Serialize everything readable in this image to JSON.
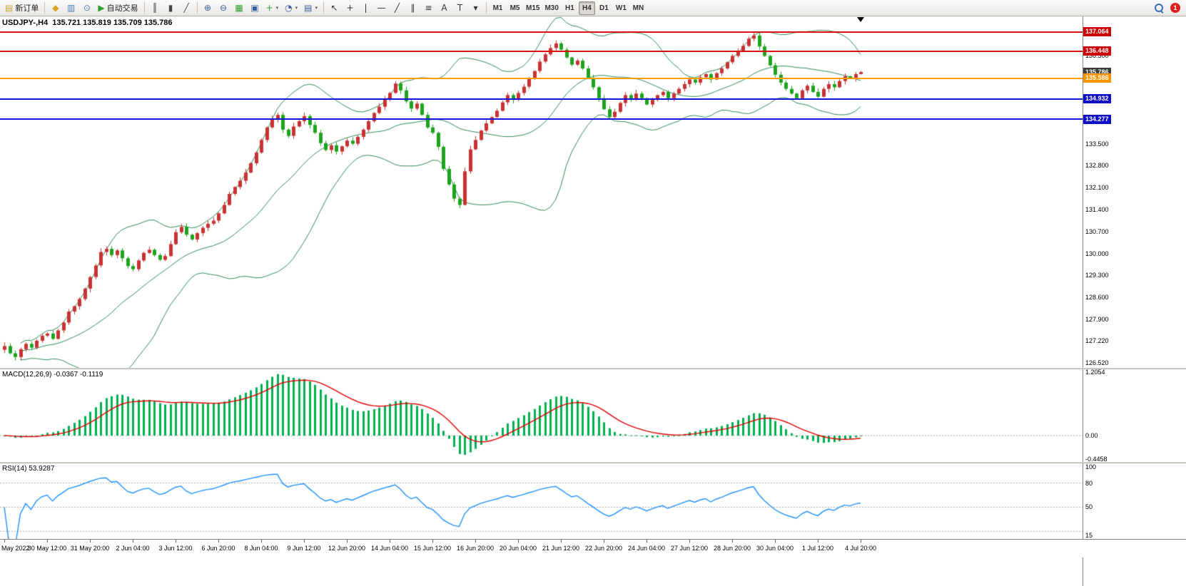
{
  "toolbar": {
    "notification_count": "1",
    "timeframes": [
      "M1",
      "M5",
      "M15",
      "M30",
      "H1",
      "H4",
      "D1",
      "W1",
      "MN"
    ],
    "active_timeframe": "H4",
    "items": [
      {
        "t": "btn",
        "name": "new-order-button",
        "icon": "new-order-icon",
        "glyph": "▤",
        "color": "#caa53a",
        "label": "新订单"
      },
      {
        "t": "sep"
      },
      {
        "t": "icon",
        "name": "market-watch-button",
        "icon": "market-watch-icon",
        "glyph": "◆",
        "color": "#d9a520"
      },
      {
        "t": "icon",
        "name": "chart-window-button",
        "icon": "chart-window-icon",
        "glyph": "▥",
        "color": "#4a7ebb"
      },
      {
        "t": "icon",
        "name": "strategy-tester-button",
        "icon": "strategy-tester-icon",
        "glyph": "⊙",
        "color": "#4a7ebb"
      },
      {
        "t": "btn",
        "name": "auto-trading-button",
        "icon": "autotrading-play-icon",
        "glyph": "▶",
        "color": "#2ca02c",
        "label": "自动交易"
      },
      {
        "t": "sep"
      },
      {
        "t": "icon",
        "name": "bar-chart-button",
        "icon": "ohlc-bars-icon",
        "glyph": "║",
        "color": "#444444"
      },
      {
        "t": "icon",
        "name": "candlestick-chart-button",
        "icon": "candlestick-icon",
        "glyph": "▮",
        "color": "#444444"
      },
      {
        "t": "icon",
        "name": "line-chart-button",
        "icon": "line-chart-icon",
        "glyph": "╱",
        "color": "#444444"
      },
      {
        "t": "sep"
      },
      {
        "t": "icon",
        "name": "zoom-in-button",
        "icon": "zoom-in-icon",
        "glyph": "⊕",
        "color": "#3a5fa0"
      },
      {
        "t": "icon",
        "name": "zoom-out-button",
        "icon": "zoom-out-icon",
        "glyph": "⊖",
        "color": "#3a5fa0"
      },
      {
        "t": "icon",
        "name": "tile-windows-button",
        "icon": "tile-windows-icon",
        "glyph": "▦",
        "color": "#2e9e2e"
      },
      {
        "t": "icon",
        "name": "arrange-windows-button",
        "icon": "arrange-windows-icon",
        "glyph": "▣",
        "color": "#3a5fa0"
      },
      {
        "t": "icon",
        "name": "new-chart-button",
        "icon": "new-chart-icon",
        "glyph": "+",
        "color": "#2e9e2e",
        "dropdown": true
      },
      {
        "t": "icon",
        "name": "period-button",
        "icon": "clock-icon",
        "glyph": "◔",
        "color": "#3a5fa0",
        "dropdown": true
      },
      {
        "t": "icon",
        "name": "template-button",
        "icon": "template-icon",
        "glyph": "▤",
        "color": "#3a5fa0",
        "dropdown": true
      },
      {
        "t": "sep"
      },
      {
        "t": "icon",
        "name": "cursor-button",
        "icon": "cursor-icon",
        "glyph": "↖",
        "color": "#333333"
      },
      {
        "t": "icon",
        "name": "crosshair-button",
        "icon": "crosshair-icon",
        "glyph": "+",
        "color": "#333333"
      },
      {
        "t": "icon",
        "name": "vertical-line-button",
        "icon": "vertical-line-icon",
        "glyph": "|",
        "color": "#333333"
      },
      {
        "t": "icon",
        "name": "horizontal-line-button",
        "icon": "horizontal-line-icon",
        "glyph": "—",
        "color": "#333333"
      },
      {
        "t": "icon",
        "name": "trendline-button",
        "icon": "trendline-icon",
        "glyph": "╱",
        "color": "#333333"
      },
      {
        "t": "icon",
        "name": "channel-button",
        "icon": "channel-icon",
        "glyph": "∥",
        "color": "#333333"
      },
      {
        "t": "icon",
        "name": "fibonacci-button",
        "icon": "fibonacci-icon",
        "glyph": "≡",
        "color": "#333333"
      },
      {
        "t": "icon",
        "name": "text-button",
        "icon": "text-icon",
        "glyph": "A",
        "color": "#333333"
      },
      {
        "t": "icon",
        "name": "arrows-button",
        "icon": "arrows-icon",
        "glyph": "T",
        "color": "#333333"
      },
      {
        "t": "icon",
        "name": "shapes-button",
        "icon": "shapes-dropdown-icon",
        "glyph": "▾",
        "color": "#333333"
      },
      {
        "t": "sep"
      }
    ]
  },
  "chart": {
    "title": "USDJPY-,H4  135.721 135.819 135.709 135.786",
    "symbol": "USDJPY-",
    "period": "H4",
    "ohlc": {
      "open": "135.721",
      "high": "135.819",
      "low": "135.709",
      "close": "135.786"
    },
    "price_scale": [
      "136.300",
      "133.500",
      "132.800",
      "132.100",
      "131.400",
      "130.700",
      "130.000",
      "129.300",
      "128.600",
      "127.900",
      "127.220",
      "126.520"
    ],
    "hlines": [
      {
        "value": 137.064,
        "label": "137.064",
        "color": "#dd1111",
        "tag_bg": "#cc0000"
      },
      {
        "value": 136.448,
        "label": "136.448",
        "color": "#dd1111",
        "tag_bg": "#cc0000"
      },
      {
        "value": 135.786,
        "label": "135.786",
        "color": "#3c3c3c",
        "tag_only": true
      },
      {
        "value": 135.586,
        "label": "135.586",
        "color": "#ff9c00",
        "tag_bg": "#f79400"
      },
      {
        "value": 134.932,
        "label": "134.932",
        "color": "#1414dd",
        "tag_bg": "#0f0fc8"
      },
      {
        "value": 134.277,
        "label": "134.277",
        "color": "#1414dd",
        "tag_bg": "#0f0fc8"
      }
    ]
  },
  "macd": {
    "label": "MACD(12,26,9) -0.0367 -0.1119",
    "max": 1.2054,
    "min": -0.4458,
    "scale": [
      {
        "label": "1.2054",
        "v": 1.2054
      },
      {
        "label": "0.00",
        "v": 0
      },
      {
        "label": "-0.4458",
        "v": -0.4458
      }
    ]
  },
  "rsi": {
    "label": "RSI(14) 53.9287",
    "levels": [
      80,
      50,
      20
    ],
    "scale": [
      {
        "label": "100",
        "v": 100
      },
      {
        "label": "80",
        "v": 80
      },
      {
        "label": "50",
        "v": 50
      },
      {
        "label": "15",
        "v": 15
      }
    ]
  },
  "time_axis": [
    "May 2022",
    "30 May 12:00",
    "31 May 20:00",
    "2 Jun 04:00",
    "3 Jun 12:00",
    "6 Jun 20:00",
    "8 Jun 04:00",
    "9 Jun 12:00",
    "12 Jun 20:00",
    "14 Jun 04:00",
    "15 Jun 12:00",
    "16 Jun 20:00",
    "20 Jun 04:00",
    "21 Jun 12:00",
    "22 Jun 20:00",
    "24 Jun 04:00",
    "27 Jun 12:00",
    "28 Jun 20:00",
    "30 Jun 04:00",
    "1 Jul 12:00",
    "4 Jul 20:00"
  ],
  "chart_data": {
    "type": "candlestick",
    "symbol": "USDJPY-",
    "timeframe": "H4",
    "bars_per_axis_label": 8,
    "y_range_estimate": [
      126.34,
      137.56
    ],
    "closes": [
      127.05,
      126.82,
      126.7,
      126.95,
      127.12,
      127.0,
      127.22,
      127.38,
      127.45,
      127.28,
      127.55,
      127.8,
      128.15,
      128.32,
      128.55,
      128.88,
      129.25,
      129.62,
      130.05,
      130.15,
      129.95,
      130.1,
      129.85,
      129.6,
      129.5,
      129.78,
      130.02,
      130.12,
      129.95,
      129.8,
      129.92,
      130.3,
      130.68,
      130.85,
      130.6,
      130.45,
      130.65,
      130.82,
      130.95,
      131.05,
      131.28,
      131.55,
      131.9,
      132.12,
      132.32,
      132.58,
      132.88,
      133.22,
      133.62,
      134.02,
      134.28,
      134.42,
      133.95,
      133.75,
      134.05,
      134.22,
      134.38,
      134.1,
      133.85,
      133.52,
      133.3,
      133.45,
      133.25,
      133.42,
      133.6,
      133.5,
      133.72,
      133.95,
      134.22,
      134.48,
      134.68,
      134.92,
      135.12,
      135.42,
      135.2,
      134.85,
      134.62,
      134.78,
      134.42,
      134.02,
      133.85,
      133.4,
      132.7,
      132.2,
      131.75,
      131.55,
      132.62,
      133.32,
      133.62,
      133.92,
      134.15,
      134.35,
      134.55,
      134.82,
      135.05,
      134.9,
      135.12,
      135.32,
      135.58,
      135.82,
      136.12,
      136.35,
      136.55,
      136.7,
      136.5,
      136.25,
      136.02,
      136.15,
      135.9,
      135.6,
      135.3,
      134.95,
      134.6,
      134.35,
      134.52,
      134.8,
      135.05,
      134.9,
      135.1,
      134.95,
      134.75,
      134.9,
      135.05,
      135.15,
      134.95,
      135.1,
      135.25,
      135.4,
      135.55,
      135.45,
      135.62,
      135.72,
      135.55,
      135.75,
      135.9,
      136.1,
      136.3,
      136.45,
      136.62,
      136.85,
      136.95,
      136.6,
      136.3,
      136.0,
      135.7,
      135.45,
      135.25,
      135.1,
      134.95,
      135.2,
      135.35,
      135.15,
      135.0,
      135.25,
      135.4,
      135.3,
      135.5,
      135.65,
      135.6,
      135.721,
      135.786
    ],
    "last_bar_ohlc": {
      "open": 135.721,
      "high": 135.819,
      "low": 135.709,
      "close": 135.786
    },
    "colors": {
      "bull": "#c93232",
      "bear": "#1ea31e"
    },
    "overlays": [
      {
        "name": "Bollinger Bands",
        "period": 20,
        "deviation": 2,
        "color": "#2e8b57"
      }
    ],
    "sub_charts": [
      {
        "type": "macd-histogram",
        "label": "MACD(12,26,9)",
        "fast": 12,
        "slow": 26,
        "signal": 9,
        "current_macd": -0.0367,
        "current_signal": -0.1119,
        "range": [
          -0.4458,
          1.2054
        ],
        "histogram_color": "#00b050",
        "signal_color": "#e00000",
        "values_note": "histogram derived from closes as EMA12-EMA26; signal = EMA9 of MACD"
      },
      {
        "type": "line",
        "label": "RSI(14)",
        "period": 14,
        "current": 53.9287,
        "range_labels": [
          100,
          80,
          50,
          15
        ],
        "color": "#1e90ff",
        "values_note": "derived from closes (Wilder RSI 14)"
      }
    ]
  }
}
